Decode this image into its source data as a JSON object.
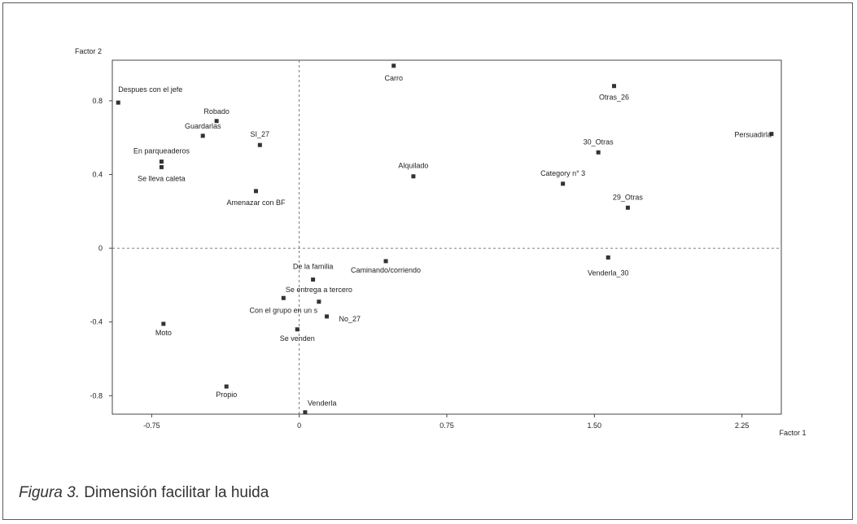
{
  "chart_data": {
    "type": "scatter",
    "xlabel": "Factor 1",
    "ylabel": "Factor 2",
    "xlim": [
      -0.95,
      2.45
    ],
    "ylim": [
      -0.9,
      1.02
    ],
    "xticks": [
      "-0.75",
      "0",
      "0.75",
      "1.50",
      "2.25"
    ],
    "xtick_values": [
      -0.75,
      0,
      0.75,
      1.5,
      2.25
    ],
    "yticks": [
      "0.8",
      "0.4",
      "0",
      "-0.4",
      "-0.8"
    ],
    "ytick_values": [
      0.8,
      0.4,
      0,
      -0.4,
      -0.8
    ],
    "grid": false,
    "zero_lines": true,
    "points": [
      {
        "label": "Despues con el jefe",
        "x": -0.92,
        "y": 0.79,
        "anchor": "start",
        "dy": -13
      },
      {
        "label": "Robado",
        "x": -0.42,
        "y": 0.69,
        "anchor": "middle",
        "dy": -9
      },
      {
        "label": "Guardarlas",
        "x": -0.49,
        "y": 0.61,
        "anchor": "middle",
        "dy": -9
      },
      {
        "label": "SI_27",
        "x": -0.2,
        "y": 0.56,
        "anchor": "middle",
        "dy": -10
      },
      {
        "label": "En parqueaderos",
        "x": -0.7,
        "y": 0.47,
        "anchor": "middle",
        "dy": -10
      },
      {
        "label": "Se lleva caleta",
        "x": -0.7,
        "y": 0.44,
        "anchor": "middle",
        "dy": 17
      },
      {
        "label": "Amenazar con BF",
        "x": -0.22,
        "y": 0.31,
        "anchor": "middle",
        "dy": 17
      },
      {
        "label": "Carro",
        "x": 0.48,
        "y": 0.99,
        "anchor": "middle",
        "dy": 18
      },
      {
        "label": "Alquilado",
        "x": 0.58,
        "y": 0.39,
        "anchor": "middle",
        "dy": -10
      },
      {
        "label": "Otras_26",
        "x": 1.6,
        "y": 0.88,
        "anchor": "middle",
        "dy": 17
      },
      {
        "label": "30_Otras",
        "x": 1.52,
        "y": 0.52,
        "anchor": "middle",
        "dy": -10
      },
      {
        "label": "Category n° 3",
        "x": 1.34,
        "y": 0.35,
        "anchor": "middle",
        "dy": -10
      },
      {
        "label": "29_Otras",
        "x": 1.67,
        "y": 0.22,
        "anchor": "middle",
        "dy": -10
      },
      {
        "label": "Persuadirla",
        "x": 2.4,
        "y": 0.62,
        "anchor": "end",
        "dy": 4
      },
      {
        "label": "Caminando/corriendo",
        "x": 0.44,
        "y": -0.07,
        "anchor": "middle",
        "dy": 14
      },
      {
        "label": "Venderla_30",
        "x": 1.57,
        "y": -0.05,
        "anchor": "middle",
        "dy": 22
      },
      {
        "label": "De la familia",
        "x": 0.07,
        "y": -0.17,
        "anchor": "middle",
        "dy": -13
      },
      {
        "label": "Se entrega a tercero",
        "x": 0.1,
        "y": -0.29,
        "anchor": "middle",
        "dy": -12
      },
      {
        "label": "Con el grupo en un s",
        "x": -0.08,
        "y": -0.27,
        "anchor": "middle",
        "dy": 18
      },
      {
        "label": "No_27",
        "x": 0.14,
        "y": -0.37,
        "anchor": "start",
        "dy": 6,
        "dx": 15
      },
      {
        "label": "Moto",
        "x": -0.69,
        "y": -0.41,
        "anchor": "middle",
        "dy": 14
      },
      {
        "label": "Se venden",
        "x": -0.01,
        "y": -0.44,
        "anchor": "middle",
        "dy": 14
      },
      {
        "label": "Propio",
        "x": -0.37,
        "y": -0.75,
        "anchor": "middle",
        "dy": 13
      },
      {
        "label": "Venderla",
        "x": 0.03,
        "y": -0.89,
        "anchor": "start",
        "dy": -8,
        "dx": 3
      }
    ]
  },
  "caption": {
    "figure_label": "Figura 3.",
    "text": "Dimensión facilitar la huida"
  }
}
